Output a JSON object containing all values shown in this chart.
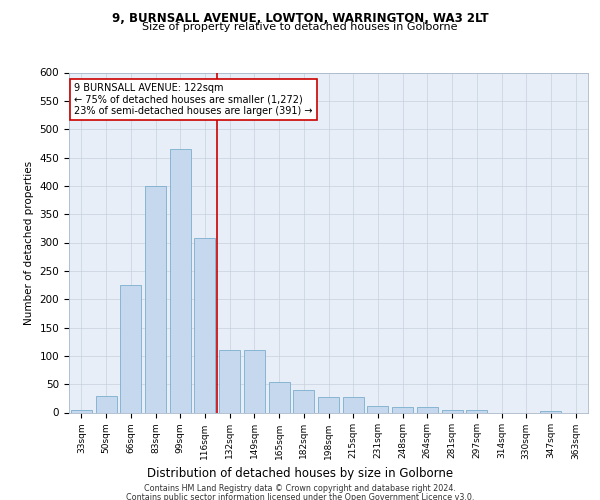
{
  "title1": "9, BURNSALL AVENUE, LOWTON, WARRINGTON, WA3 2LT",
  "title2": "Size of property relative to detached houses in Golborne",
  "xlabel": "Distribution of detached houses by size in Golborne",
  "ylabel": "Number of detached properties",
  "categories": [
    "33sqm",
    "50sqm",
    "66sqm",
    "83sqm",
    "99sqm",
    "116sqm",
    "132sqm",
    "149sqm",
    "165sqm",
    "182sqm",
    "198sqm",
    "215sqm",
    "231sqm",
    "248sqm",
    "264sqm",
    "281sqm",
    "297sqm",
    "314sqm",
    "330sqm",
    "347sqm",
    "363sqm"
  ],
  "values": [
    5,
    30,
    225,
    400,
    465,
    308,
    110,
    110,
    53,
    40,
    28,
    28,
    12,
    10,
    10,
    5,
    5,
    0,
    0,
    3,
    0
  ],
  "bar_color": "#c5d8ee",
  "bar_edgecolor": "#7aaecc",
  "vline_x": 5.5,
  "vline_color": "#cc0000",
  "annotation_text": "9 BURNSALL AVENUE: 122sqm\n← 75% of detached houses are smaller (1,272)\n23% of semi-detached houses are larger (391) →",
  "annotation_box_color": "#ffffff",
  "annotation_box_edgecolor": "#cc0000",
  "ylim": [
    0,
    600
  ],
  "yticks": [
    0,
    50,
    100,
    150,
    200,
    250,
    300,
    350,
    400,
    450,
    500,
    550,
    600
  ],
  "footer1": "Contains HM Land Registry data © Crown copyright and database right 2024.",
  "footer2": "Contains public sector information licensed under the Open Government Licence v3.0.",
  "bg_color": "#ffffff",
  "plot_bg_color": "#e8eef8"
}
